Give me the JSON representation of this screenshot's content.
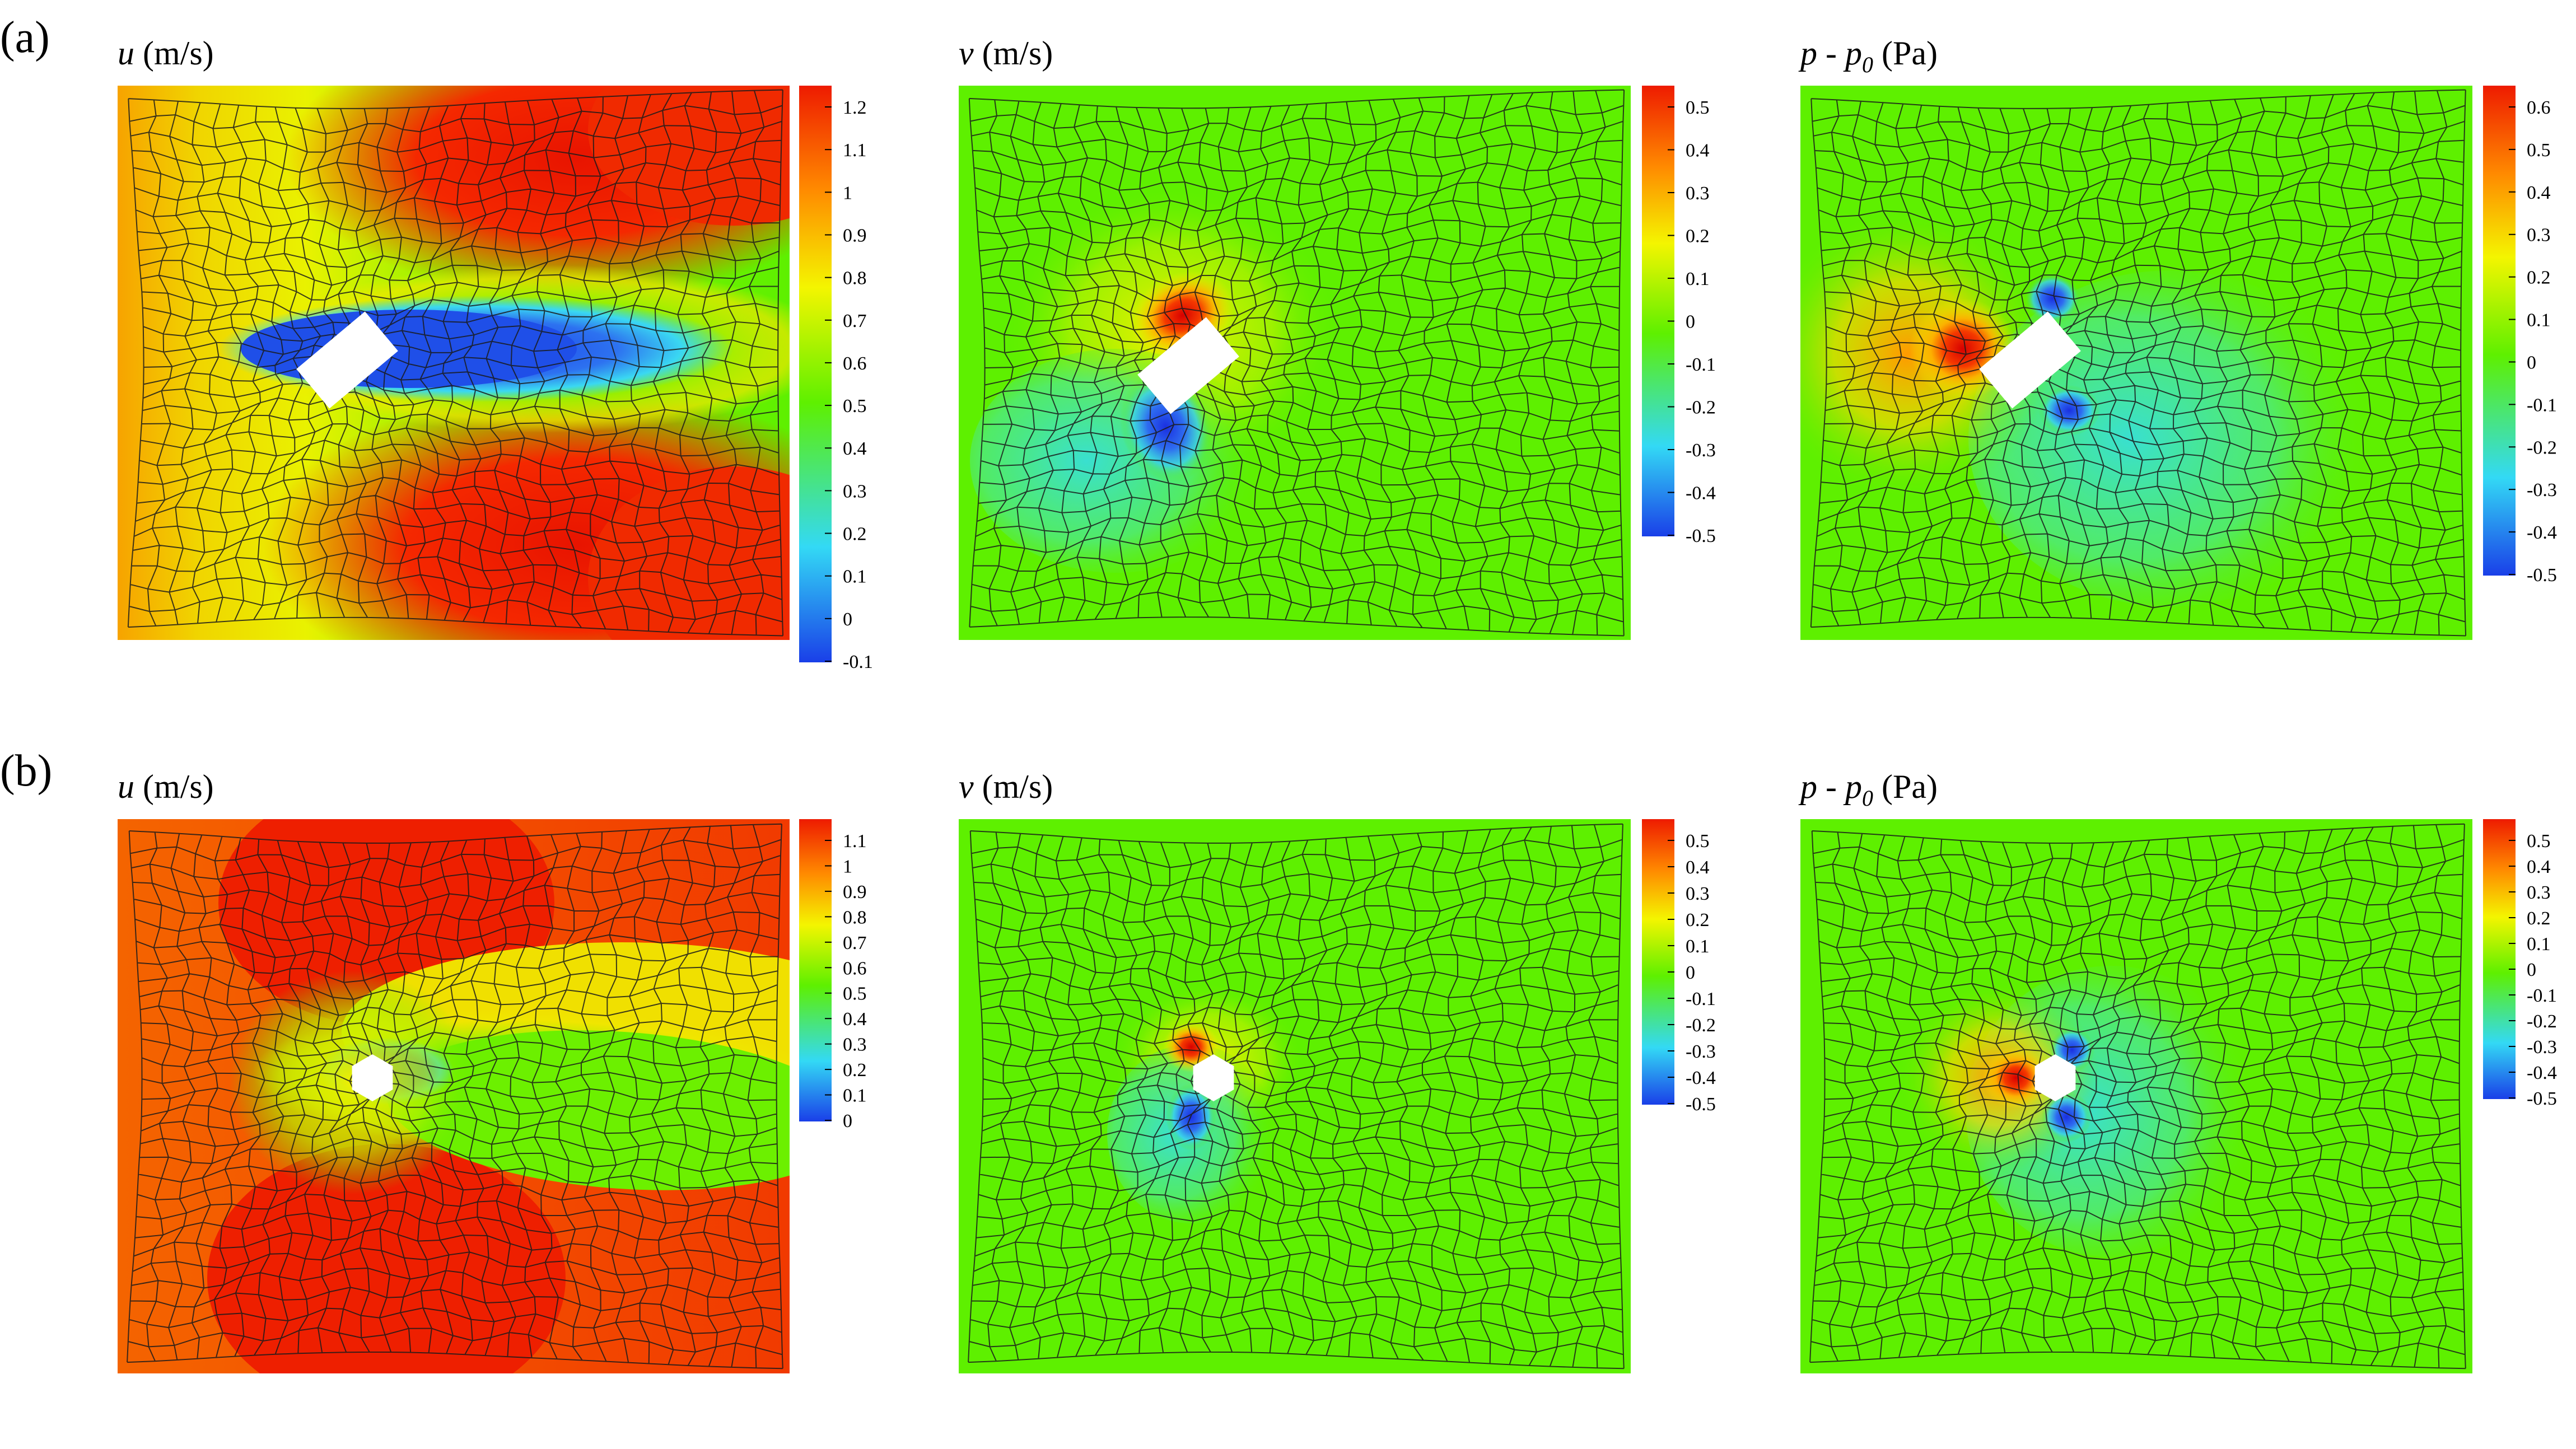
{
  "figure": {
    "rows": [
      {
        "label": "(a)",
        "panels": [
          {
            "title_var": "u",
            "title_sub": "",
            "title_unit": " (m/s)",
            "colorbar_ticks": [
              "1.2",
              "1.1",
              "1",
              "0.9",
              "0.8",
              "0.7",
              "0.6",
              "0.5",
              "0.4",
              "0.3",
              "0.2",
              "0.1",
              "0",
              "-0.1"
            ]
          },
          {
            "title_var": "v",
            "title_sub": "",
            "title_unit": " (m/s)",
            "colorbar_ticks": [
              "0.5",
              "0.4",
              "0.3",
              "0.2",
              "0.1",
              "0",
              "-0.1",
              "-0.2",
              "-0.3",
              "-0.4",
              "-0.5"
            ]
          },
          {
            "title_var": "p - p",
            "title_sub": "0",
            "title_unit": " (Pa)",
            "colorbar_ticks": [
              "0.6",
              "0.5",
              "0.4",
              "0.3",
              "0.2",
              "0.1",
              "0",
              "-0.1",
              "-0.2",
              "-0.3",
              "-0.4",
              "-0.5"
            ]
          }
        ]
      },
      {
        "label": "(b)",
        "panels": [
          {
            "title_var": "u",
            "title_sub": "",
            "title_unit": " (m/s)",
            "colorbar_ticks": [
              "1.1",
              "1",
              "0.9",
              "0.8",
              "0.7",
              "0.6",
              "0.5",
              "0.4",
              "0.3",
              "0.2",
              "0.1",
              "0"
            ]
          },
          {
            "title_var": "v",
            "title_sub": "",
            "title_unit": " (m/s)",
            "colorbar_ticks": [
              "0.5",
              "0.4",
              "0.3",
              "0.2",
              "0.1",
              "0",
              "-0.1",
              "-0.2",
              "-0.3",
              "-0.4",
              "-0.5"
            ]
          },
          {
            "title_var": "p - p",
            "title_sub": "0",
            "title_unit": " (Pa)",
            "colorbar_ticks": [
              "0.5",
              "0.4",
              "0.3",
              "0.2",
              "0.1",
              "0",
              "-0.1",
              "-0.2",
              "-0.3",
              "-0.4",
              "-0.5"
            ]
          }
        ]
      }
    ]
  },
  "chart_data": [
    {
      "type": "heatmap",
      "title": "u (m/s)",
      "row": "(a)",
      "colorbar_range": [
        -0.1,
        1.25
      ],
      "obstacle": "rectangle",
      "colormap": [
        "#1a3fe8",
        "#33d9f5",
        "#5ef000",
        "#f4f500",
        "#ff8a00",
        "#ee1b00"
      ]
    },
    {
      "type": "heatmap",
      "title": "v (m/s)",
      "row": "(a)",
      "colorbar_range": [
        -0.55,
        0.55
      ],
      "obstacle": "rectangle",
      "colormap": [
        "#1a3fe8",
        "#33d9f5",
        "#5ef000",
        "#f4f500",
        "#ff8a00",
        "#ee1b00"
      ]
    },
    {
      "type": "heatmap",
      "title": "p - p0 (Pa)",
      "row": "(a)",
      "colorbar_range": [
        -0.55,
        0.65
      ],
      "obstacle": "rectangle",
      "colormap": [
        "#1a3fe8",
        "#33d9f5",
        "#5ef000",
        "#f4f500",
        "#ff8a00",
        "#ee1b00"
      ]
    },
    {
      "type": "heatmap",
      "title": "u (m/s)",
      "row": "(b)",
      "colorbar_range": [
        -0.05,
        1.15
      ],
      "obstacle": "pentagon",
      "colormap": [
        "#1a3fe8",
        "#33d9f5",
        "#5ef000",
        "#f4f500",
        "#ff8a00",
        "#ee1b00"
      ]
    },
    {
      "type": "heatmap",
      "title": "v (m/s)",
      "row": "(b)",
      "colorbar_range": [
        -0.55,
        0.55
      ],
      "obstacle": "pentagon",
      "colormap": [
        "#1a3fe8",
        "#33d9f5",
        "#5ef000",
        "#f4f500",
        "#ff8a00",
        "#ee1b00"
      ]
    },
    {
      "type": "heatmap",
      "title": "p - p0 (Pa)",
      "row": "(b)",
      "colorbar_range": [
        -0.55,
        0.55
      ],
      "obstacle": "pentagon",
      "colormap": [
        "#1a3fe8",
        "#33d9f5",
        "#5ef000",
        "#f4f500",
        "#ff8a00",
        "#ee1b00"
      ]
    }
  ]
}
